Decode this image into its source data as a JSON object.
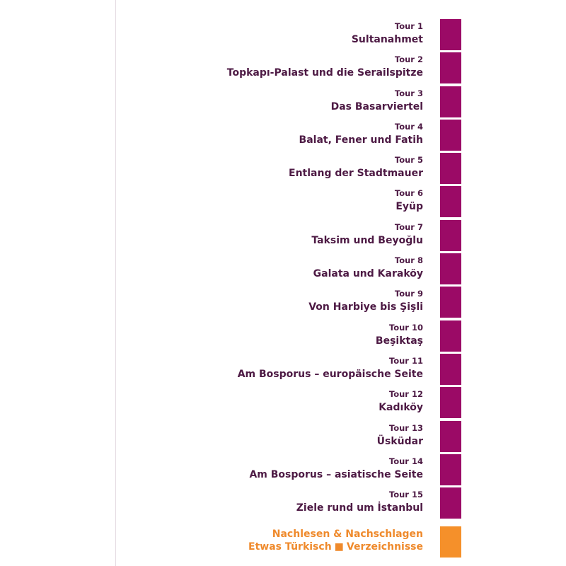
{
  "colors": {
    "tab": "#9b0a66",
    "ink": "#4d1a44",
    "accent": "#ef8a2c",
    "accent_tab": "#f5902a"
  },
  "tours": [
    {
      "number": "Tour 1",
      "title": "Sultanahmet"
    },
    {
      "number": "Tour 2",
      "title": "Topkapı-Palast und die Serailspitze"
    },
    {
      "number": "Tour 3",
      "title": "Das Basarviertel"
    },
    {
      "number": "Tour 4",
      "title": "Balat, Fener und Fatih"
    },
    {
      "number": "Tour 5",
      "title": "Entlang der Stadtmauer"
    },
    {
      "number": "Tour 6",
      "title": "Eyüp"
    },
    {
      "number": "Tour 7",
      "title": "Taksim und Beyoğlu"
    },
    {
      "number": "Tour 8",
      "title": "Galata und Karaköy"
    },
    {
      "number": "Tour 9",
      "title": "Von Harbiye bis Şişli"
    },
    {
      "number": "Tour 10",
      "title": "Beşiktaş"
    },
    {
      "number": "Tour 11",
      "title": "Am Bosporus – europäische Seite"
    },
    {
      "number": "Tour 12",
      "title": "Kadıköy"
    },
    {
      "number": "Tour 13",
      "title": "Üsküdar"
    },
    {
      "number": "Tour 14",
      "title": "Am Bosporus – asiatische Seite"
    },
    {
      "number": "Tour 15",
      "title": "Ziele rund um İstanbul"
    }
  ],
  "appendix": {
    "line1": "Nachlesen & Nachschlagen",
    "line2_a": "Etwas Türkisch",
    "bullet": "■",
    "line2_b": "Verzeichnisse"
  }
}
